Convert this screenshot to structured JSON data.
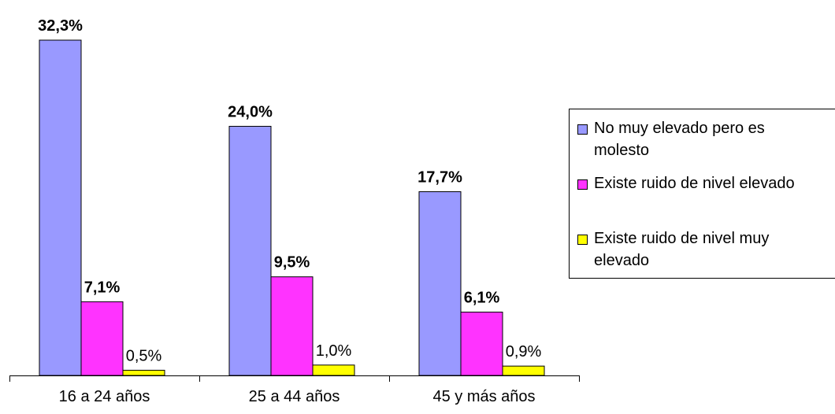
{
  "chart_data": {
    "type": "bar",
    "title": "",
    "xlabel": "",
    "ylabel": "",
    "categories": [
      "16 a 24 años",
      "25 a 44 años",
      "45 y más años"
    ],
    "ylim": [
      0,
      32.3
    ],
    "grid": false,
    "legend_position": "right",
    "series": [
      {
        "name": "No muy elevado pero es molesto",
        "color": "#9999ff",
        "values": [
          32.3,
          24.0,
          17.7
        ],
        "labels": [
          "32,3%",
          "24,0%",
          "17,7%"
        ],
        "label_bold": true
      },
      {
        "name": "Existe ruido de nivel elevado",
        "color": "#ff33ff",
        "values": [
          7.1,
          9.5,
          6.1
        ],
        "labels": [
          "7,1%",
          "9,5%",
          "6,1%"
        ],
        "label_bold": true
      },
      {
        "name": "Existe ruido de nivel muy elevado",
        "color": "#ffff00",
        "values": [
          0.5,
          1.0,
          0.9
        ],
        "labels": [
          "0,5%",
          "1,0%",
          "0,9%"
        ],
        "label_bold": false
      }
    ]
  },
  "legend": {
    "items": [
      {
        "line1": "No muy elevado pero es",
        "line2": "molesto",
        "color": "#9999ff"
      },
      {
        "line1": "Existe ruido de nivel elevado",
        "line2": "",
        "color": "#ff33ff"
      },
      {
        "line1": "Existe ruido de nivel muy",
        "line2": "elevado",
        "color": "#ffff00"
      }
    ]
  }
}
